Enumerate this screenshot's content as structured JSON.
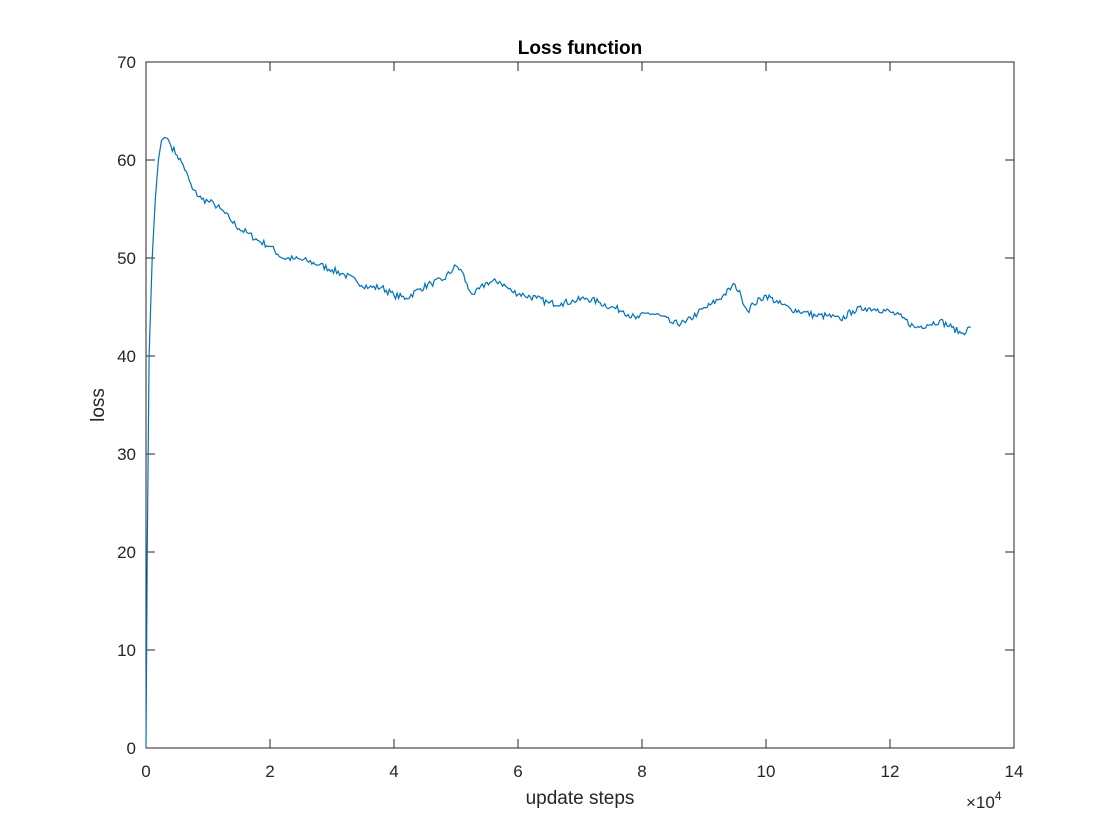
{
  "chart_data": {
    "type": "line",
    "title": "Loss function",
    "xlabel": "update steps",
    "ylabel": "loss",
    "x_multiplier_label": "×10",
    "x_multiplier_exponent": "4",
    "xlim": [
      0,
      14
    ],
    "ylim": [
      0,
      70
    ],
    "x_ticks": [
      "0",
      "2",
      "4",
      "6",
      "8",
      "10",
      "12",
      "14"
    ],
    "y_ticks": [
      "0",
      "10",
      "20",
      "30",
      "40",
      "50",
      "60",
      "70"
    ],
    "x_tick_values": [
      0,
      2,
      4,
      6,
      8,
      10,
      12,
      14
    ],
    "y_tick_values": [
      0,
      10,
      20,
      30,
      40,
      50,
      60,
      70
    ],
    "grid": false,
    "line_color": "#0072BD",
    "series": [
      {
        "x": [
          0,
          0.02,
          0.05,
          0.1,
          0.15,
          0.2,
          0.25,
          0.3,
          0.35,
          0.4,
          0.5,
          0.6,
          0.75,
          0.9,
          1.0,
          1.1,
          1.2,
          1.35,
          1.5,
          1.65,
          1.8,
          2.0,
          2.2,
          2.4,
          2.6,
          2.8,
          3.0,
          3.2,
          3.4,
          3.6,
          3.8,
          4.0,
          4.2,
          4.4,
          4.6,
          4.8,
          5.0,
          5.1,
          5.2,
          5.3,
          5.5,
          5.7,
          5.9,
          6.1,
          6.3,
          6.5,
          6.7,
          6.9,
          7.1,
          7.3,
          7.5,
          7.7,
          7.9,
          8.1,
          8.3,
          8.5,
          8.7,
          8.9,
          9.1,
          9.3,
          9.5,
          9.6,
          9.7,
          9.8,
          10.0,
          10.2,
          10.4,
          10.6,
          10.8,
          11.0,
          11.2,
          11.4,
          11.6,
          11.8,
          12.0,
          12.2,
          12.4,
          12.6,
          12.8,
          13.0,
          13.15,
          13.3
        ],
        "y": [
          0,
          20,
          40,
          50,
          56,
          60,
          62,
          62.3,
          62.2,
          61.5,
          60.5,
          59.5,
          57,
          56,
          55.8,
          55.5,
          55,
          54,
          53,
          52.5,
          51.8,
          51.2,
          50,
          49.9,
          49.7,
          49.3,
          48.8,
          48.3,
          47.6,
          47.0,
          47.0,
          46.2,
          45.9,
          46.8,
          47.4,
          47.8,
          49.2,
          48.6,
          46.8,
          46.3,
          47.5,
          47.6,
          46.6,
          46.2,
          45.9,
          45.4,
          45.4,
          45.6,
          45.9,
          45.5,
          45.0,
          44.6,
          43.8,
          44.4,
          44.1,
          43.3,
          43.4,
          44.4,
          45.2,
          46.1,
          47.3,
          46.1,
          44.6,
          45.3,
          46.2,
          45.4,
          44.8,
          44.5,
          44.1,
          44.1,
          43.7,
          44.6,
          44.9,
          44.8,
          44.5,
          43.9,
          42.9,
          43.2,
          43.6,
          42.9,
          42.3,
          42.9
        ]
      }
    ]
  }
}
